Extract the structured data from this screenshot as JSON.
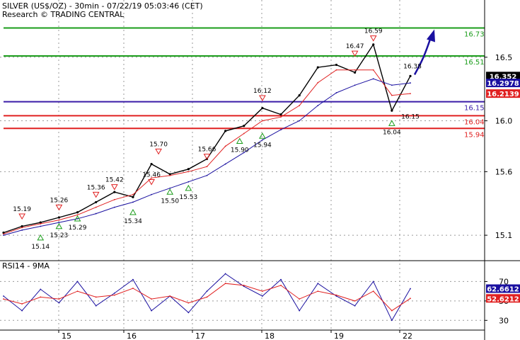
{
  "header": {
    "title": "SILVER (US$/OZ) - 30min - 07/22/19 05:03:46 (CET)",
    "credit": "Research © TRADING CENTRAL"
  },
  "chart_data": [
    {
      "type": "line",
      "panel": "price",
      "title": "SILVER (US$/OZ) - 30min - 07/22/19 05:03:46 (CET)",
      "ylim": [
        14.9,
        16.95
      ],
      "yticks": [
        "15.1",
        "15.6",
        "16.0",
        "16.5"
      ],
      "xticks": [
        "15",
        "16",
        "17",
        "18",
        "19",
        "22"
      ],
      "x": [
        "15",
        "15",
        "15",
        "15",
        "16",
        "16",
        "16",
        "16",
        "16",
        "17",
        "17",
        "17",
        "18",
        "18",
        "18",
        "18",
        "19",
        "19",
        "19",
        "19",
        "19",
        "22",
        "22"
      ],
      "series": [
        {
          "values": [
            15.12,
            15.17,
            15.2,
            15.24,
            15.28,
            15.36,
            15.44,
            15.4,
            15.66,
            15.58,
            15.62,
            15.7,
            15.92,
            15.96,
            16.1,
            16.05,
            16.2,
            16.42,
            16.44,
            16.38,
            16.6,
            16.08,
            16.352
          ]
        },
        {
          "values": [
            15.11,
            15.16,
            15.19,
            15.22,
            15.26,
            15.32,
            15.38,
            15.42,
            15.55,
            15.57,
            15.6,
            15.64,
            15.8,
            15.9,
            16.0,
            16.03,
            16.12,
            16.3,
            16.4,
            16.4,
            16.4,
            16.2,
            16.2139
          ]
        },
        {
          "values": [
            15.1,
            15.14,
            15.17,
            15.2,
            15.23,
            15.27,
            15.32,
            15.36,
            15.42,
            15.47,
            15.52,
            15.57,
            15.66,
            15.75,
            15.85,
            15.93,
            16.0,
            16.12,
            16.22,
            16.28,
            16.33,
            16.28,
            16.2978
          ]
        }
      ],
      "levels": [
        {
          "value": 16.73,
          "label": "16.73",
          "color": "#1a9c1a"
        },
        {
          "value": 16.51,
          "label": "16.51",
          "color": "#1a9c1a"
        },
        {
          "value": 16.15,
          "label": "16.15",
          "color": "#3a1ca8"
        },
        {
          "value": 16.04,
          "label": "16.04",
          "color": "#e02020"
        },
        {
          "value": 15.94,
          "label": "15.94",
          "color": "#e02020"
        }
      ],
      "value_boxes": [
        {
          "label": "16.352",
          "color": "#000000"
        },
        {
          "label": "16.2978",
          "color": "#1a10a0"
        },
        {
          "label": "16.2139",
          "color": "#e02020"
        }
      ],
      "highs": [
        {
          "label": "15.19",
          "value": 15.19
        },
        {
          "label": "15.26",
          "value": 15.26
        },
        {
          "label": "15.36",
          "value": 15.36
        },
        {
          "label": "15.42",
          "value": 15.42
        },
        {
          "label": "15.46",
          "value": 15.46
        },
        {
          "label": "15.70",
          "value": 15.7
        },
        {
          "label": "15.66",
          "value": 15.66
        },
        {
          "label": "16.12",
          "value": 16.12
        },
        {
          "label": "16.47",
          "value": 16.47
        },
        {
          "label": "16.59",
          "value": 16.59
        }
      ],
      "lows": [
        {
          "label": "15.14",
          "value": 15.14
        },
        {
          "label": "15.23",
          "value": 15.23
        },
        {
          "label": "15.29",
          "value": 15.29
        },
        {
          "label": "15.34",
          "value": 15.34
        },
        {
          "label": "15.50",
          "value": 15.5
        },
        {
          "label": "15.53",
          "value": 15.53
        },
        {
          "label": "15.90",
          "value": 15.9
        },
        {
          "label": "15.94",
          "value": 15.94
        },
        {
          "label": "16.04",
          "value": 16.04
        }
      ],
      "annotations": [
        "16.38",
        "16.15"
      ],
      "colors": {
        "ma_fast": "#e02020",
        "ma_slow": "#1a10a0",
        "arrow": "#1a10a0"
      }
    },
    {
      "type": "line",
      "panel": "rsi",
      "title": "RSI14 - 9MA",
      "ylim": [
        20,
        90
      ],
      "yticks": [
        "30",
        "50",
        "70"
      ],
      "series": [
        {
          "values": [
            55,
            40,
            62,
            48,
            70,
            45,
            58,
            72,
            40,
            55,
            38,
            60,
            78,
            65,
            55,
            72,
            40,
            68,
            55,
            45,
            70,
            30,
            62.6612
          ]
        },
        {
          "values": [
            52,
            47,
            54,
            52,
            60,
            54,
            56,
            63,
            52,
            55,
            48,
            54,
            68,
            66,
            60,
            66,
            52,
            60,
            56,
            50,
            60,
            40,
            52.6212
          ]
        }
      ],
      "value_boxes": [
        {
          "label": "62.6612",
          "color": "#1a10a0"
        },
        {
          "label": "52.6212",
          "color": "#e02020"
        }
      ]
    }
  ]
}
